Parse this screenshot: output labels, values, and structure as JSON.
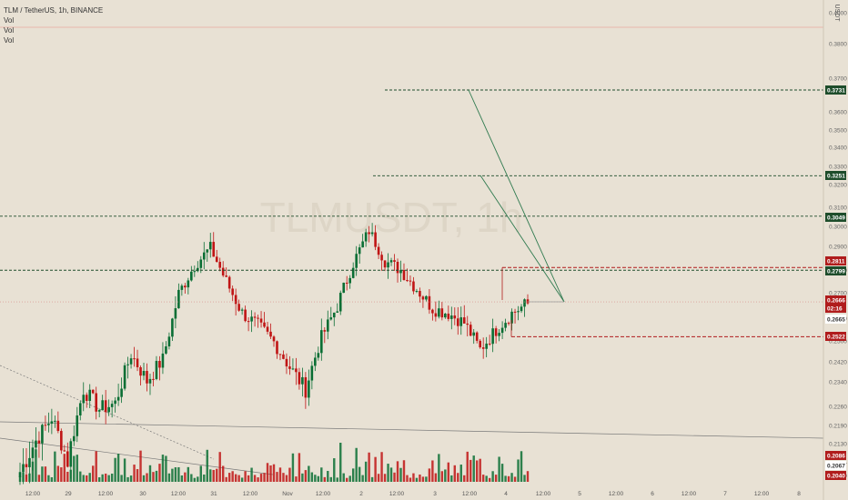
{
  "legend": {
    "symbol_line": "TLM / TetherUS, 1h, BINANCE",
    "indicators": [
      "Vol",
      "Vol",
      "Vol"
    ]
  },
  "watermark": "TLMUSDT, 1h",
  "currency": "USDT",
  "colors": {
    "background": "#e8e1d4",
    "up": "#0a6e34",
    "down": "#c01515",
    "level_green": "#1e4d2b",
    "level_red": "#b01c1c",
    "trend": "#2f7a4f",
    "diag": "#7a7a7a"
  },
  "chart_data": {
    "type": "candlestick",
    "y_axis": {
      "scale": "log",
      "ticks": [
        "0.4000",
        "0.3800",
        "0.3700",
        "0.3600",
        "0.3500",
        "0.3400",
        "0.3300",
        "0.3200",
        "0.3100",
        "0.3000",
        "0.2900",
        "0.2800",
        "0.2700",
        "0.2600",
        "0.2500",
        "0.2420",
        "0.2340",
        "0.2260",
        "0.2190",
        "0.2130",
        "0.2067",
        "0.2040"
      ]
    },
    "x_axis": {
      "ticks": [
        "12:00",
        "29",
        "12:00",
        "30",
        "12:00",
        "31",
        "12:00",
        "Nov",
        "12:00",
        "2",
        "12:00",
        "3",
        "12:00",
        "4",
        "12:00",
        "5",
        "12:00",
        "6",
        "12:00",
        "7",
        "12:00",
        "8"
      ]
    },
    "price_labels": [
      {
        "value": "0.3731",
        "style": "green"
      },
      {
        "value": "0.3251",
        "style": "green"
      },
      {
        "value": "0.3049",
        "style": "green"
      },
      {
        "value": "0.2811",
        "style": "red"
      },
      {
        "value": "0.2799",
        "style": "green"
      },
      {
        "value": "0.2666",
        "style": "red"
      },
      {
        "value": "02:16",
        "style": "red"
      },
      {
        "value": "0.2665",
        "style": "white"
      },
      {
        "value": "0.2522",
        "style": "red"
      },
      {
        "value": "0.2086",
        "style": "red"
      },
      {
        "value": "0.2067",
        "style": "white"
      },
      {
        "value": "0.2040",
        "style": "red"
      }
    ],
    "levels": {
      "green_dashed": [
        0.3731,
        0.3251,
        0.3049,
        0.2799
      ],
      "red_dashed": [
        0.2811,
        0.2522
      ],
      "current_price": 0.2666
    },
    "close_anchors": [
      0.205,
      0.214,
      0.222,
      0.208,
      0.232,
      0.225,
      0.227,
      0.245,
      0.235,
      0.243,
      0.27,
      0.282,
      0.29,
      0.275,
      0.262,
      0.257,
      0.25,
      0.24,
      0.232,
      0.252,
      0.265,
      0.283,
      0.298,
      0.284,
      0.28,
      0.272,
      0.264,
      0.262,
      0.258,
      0.247,
      0.255,
      0.262,
      0.266
    ]
  }
}
